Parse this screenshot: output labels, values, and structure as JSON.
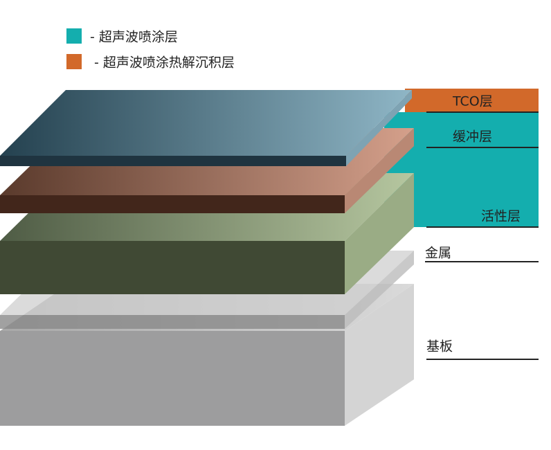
{
  "legend": [
    {
      "label": "- 超声波喷涂层",
      "color": "#14aeae"
    },
    {
      "label": "- 超声波喷涂热解沉积层",
      "color": "#d2692a"
    }
  ],
  "layers": [
    {
      "label": "TCO层"
    },
    {
      "label": "缓冲层"
    },
    {
      "label": "活性层"
    },
    {
      "label": "金属"
    },
    {
      "label": "基板"
    }
  ]
}
